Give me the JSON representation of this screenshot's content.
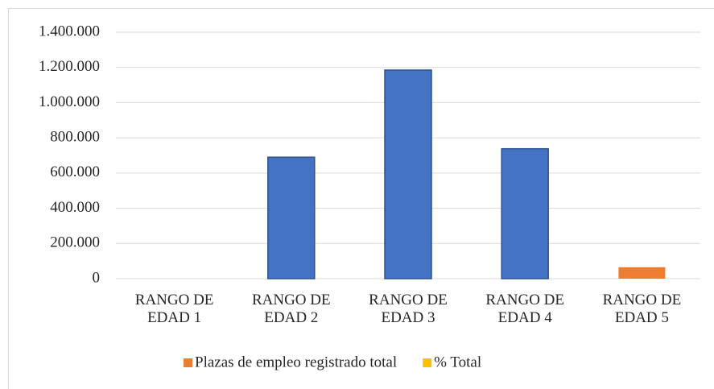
{
  "chart_data": {
    "type": "bar",
    "categories": [
      "RANGO DE EDAD 1",
      "RANGO DE EDAD 2",
      "RANGO DE EDAD 3",
      "RANGO DE EDAD 4",
      "RANGO DE EDAD 5"
    ],
    "series": [
      {
        "name": "Plazas de empleo registrado total",
        "color": "#ed7d31",
        "point_colors": [
          null,
          "#4472c4",
          "#4472c4",
          "#4472c4",
          "#ed7d31"
        ],
        "point_edge_colors": [
          null,
          "#2f528f",
          "#2f528f",
          "#2f528f",
          null
        ],
        "values": [
          null,
          690000,
          1185000,
          738000,
          65000
        ]
      },
      {
        "name": "% Total",
        "color": "#ffc000",
        "values": [
          null,
          null,
          null,
          null,
          null
        ]
      }
    ],
    "ylim": [
      0,
      1400000
    ],
    "yticks": [
      0,
      {
        "value": 200000,
        "label": "200.000"
      },
      {
        "value": 400000,
        "label": "400.000"
      },
      {
        "value": 600000,
        "label": "600.000"
      },
      {
        "value": 800000,
        "label": "800.000"
      },
      {
        "value": 1000000,
        "label": "1.000.000"
      },
      {
        "value": 1200000,
        "label": "1.200.000"
      },
      {
        "value": 1400000,
        "label": "1.400.000"
      }
    ],
    "grid": true,
    "legend": "bottom"
  }
}
